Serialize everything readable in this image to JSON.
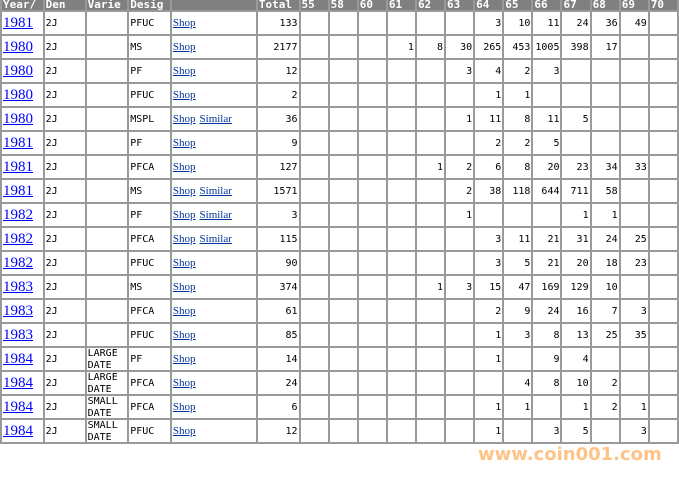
{
  "headers": [
    "Year/",
    "Den",
    "Varie",
    "Desig",
    "",
    "Total",
    "55",
    "58",
    "60",
    "61",
    "62",
    "63",
    "64",
    "65",
    "66",
    "67",
    "68",
    "69",
    "70"
  ],
  "rows": [
    {
      "year": "1981",
      "den": "2J",
      "variety": "",
      "desig": "PFUC",
      "links": [
        "Shop"
      ],
      "total": "133",
      "counts": [
        "",
        "",
        "",
        "",
        "",
        "",
        "3",
        "10",
        "11",
        "24",
        "36",
        "49",
        ""
      ]
    },
    {
      "year": "1980",
      "den": "2J",
      "variety": "",
      "desig": "MS",
      "links": [
        "Shop"
      ],
      "total": "2177",
      "counts": [
        "",
        "",
        "",
        "1",
        "8",
        "30",
        "265",
        "453",
        "1005",
        "398",
        "17",
        "",
        ""
      ]
    },
    {
      "year": "1980",
      "den": "2J",
      "variety": "",
      "desig": "PF",
      "links": [
        "Shop"
      ],
      "total": "12",
      "counts": [
        "",
        "",
        "",
        "",
        "",
        "3",
        "4",
        "2",
        "3",
        "",
        "",
        "",
        ""
      ]
    },
    {
      "year": "1980",
      "den": "2J",
      "variety": "",
      "desig": "PFUC",
      "links": [
        "Shop"
      ],
      "total": "2",
      "counts": [
        "",
        "",
        "",
        "",
        "",
        "",
        "1",
        "1",
        "",
        "",
        "",
        "",
        ""
      ]
    },
    {
      "year": "1980",
      "den": "2J",
      "variety": "",
      "desig": "MSPL",
      "links": [
        "Shop",
        "Similar"
      ],
      "total": "36",
      "counts": [
        "",
        "",
        "",
        "",
        "",
        "1",
        "11",
        "8",
        "11",
        "5",
        "",
        "",
        ""
      ]
    },
    {
      "year": "1981",
      "den": "2J",
      "variety": "",
      "desig": "PF",
      "links": [
        "Shop"
      ],
      "total": "9",
      "counts": [
        "",
        "",
        "",
        "",
        "",
        "",
        "2",
        "2",
        "5",
        "",
        "",
        "",
        ""
      ]
    },
    {
      "year": "1981",
      "den": "2J",
      "variety": "",
      "desig": "PFCA",
      "links": [
        "Shop"
      ],
      "total": "127",
      "counts": [
        "",
        "",
        "",
        "",
        "1",
        "2",
        "6",
        "8",
        "20",
        "23",
        "34",
        "33",
        ""
      ]
    },
    {
      "year": "1981",
      "den": "2J",
      "variety": "",
      "desig": "MS",
      "links": [
        "Shop",
        "Similar"
      ],
      "total": "1571",
      "counts": [
        "",
        "",
        "",
        "",
        "",
        "2",
        "38",
        "118",
        "644",
        "711",
        "58",
        "",
        ""
      ]
    },
    {
      "year": "1982",
      "den": "2J",
      "variety": "",
      "desig": "PF",
      "links": [
        "Shop",
        "Similar"
      ],
      "total": "3",
      "counts": [
        "",
        "",
        "",
        "",
        "",
        "1",
        "",
        "",
        "",
        "1",
        "1",
        "",
        ""
      ]
    },
    {
      "year": "1982",
      "den": "2J",
      "variety": "",
      "desig": "PFCA",
      "links": [
        "Shop",
        "Similar"
      ],
      "total": "115",
      "counts": [
        "",
        "",
        "",
        "",
        "",
        "",
        "3",
        "11",
        "21",
        "31",
        "24",
        "25",
        ""
      ]
    },
    {
      "year": "1982",
      "den": "2J",
      "variety": "",
      "desig": "PFUC",
      "links": [
        "Shop"
      ],
      "total": "90",
      "counts": [
        "",
        "",
        "",
        "",
        "",
        "",
        "3",
        "5",
        "21",
        "20",
        "18",
        "23",
        ""
      ]
    },
    {
      "year": "1983",
      "den": "2J",
      "variety": "",
      "desig": "MS",
      "links": [
        "Shop"
      ],
      "total": "374",
      "counts": [
        "",
        "",
        "",
        "",
        "1",
        "3",
        "15",
        "47",
        "169",
        "129",
        "10",
        "",
        ""
      ]
    },
    {
      "year": "1983",
      "den": "2J",
      "variety": "",
      "desig": "PFCA",
      "links": [
        "Shop"
      ],
      "total": "61",
      "counts": [
        "",
        "",
        "",
        "",
        "",
        "",
        "2",
        "9",
        "24",
        "16",
        "7",
        "3",
        ""
      ]
    },
    {
      "year": "1983",
      "den": "2J",
      "variety": "",
      "desig": "PFUC",
      "links": [
        "Shop"
      ],
      "total": "85",
      "counts": [
        "",
        "",
        "",
        "",
        "",
        "",
        "1",
        "3",
        "8",
        "13",
        "25",
        "35",
        ""
      ]
    },
    {
      "year": "1984",
      "den": "2J",
      "variety": "LARGE DATE",
      "desig": "PF",
      "links": [
        "Shop"
      ],
      "total": "14",
      "counts": [
        "",
        "",
        "",
        "",
        "",
        "",
        "1",
        "",
        "9",
        "4",
        "",
        "",
        ""
      ]
    },
    {
      "year": "1984",
      "den": "2J",
      "variety": "LARGE DATE",
      "desig": "PFCA",
      "links": [
        "Shop"
      ],
      "total": "24",
      "counts": [
        "",
        "",
        "",
        "",
        "",
        "",
        "",
        "4",
        "8",
        "10",
        "2",
        "",
        ""
      ]
    },
    {
      "year": "1984",
      "den": "2J",
      "variety": "SMALL DATE",
      "desig": "PFCA",
      "links": [
        "Shop"
      ],
      "total": "6",
      "counts": [
        "",
        "",
        "",
        "",
        "",
        "",
        "1",
        "1",
        "",
        "1",
        "2",
        "1",
        ""
      ]
    },
    {
      "year": "1984",
      "den": "2J",
      "variety": "SMALL DATE",
      "desig": "PFUC",
      "links": [
        "Shop"
      ],
      "total": "12",
      "counts": [
        "",
        "",
        "",
        "",
        "",
        "",
        "1",
        "",
        "3",
        "5",
        "",
        "3",
        ""
      ]
    }
  ],
  "watermark": "www.coin001.com",
  "colors": {
    "header_bg": "#808080",
    "grid": "#9a9a9a",
    "year_link": "#0000ff",
    "shop_link": "#003399"
  }
}
